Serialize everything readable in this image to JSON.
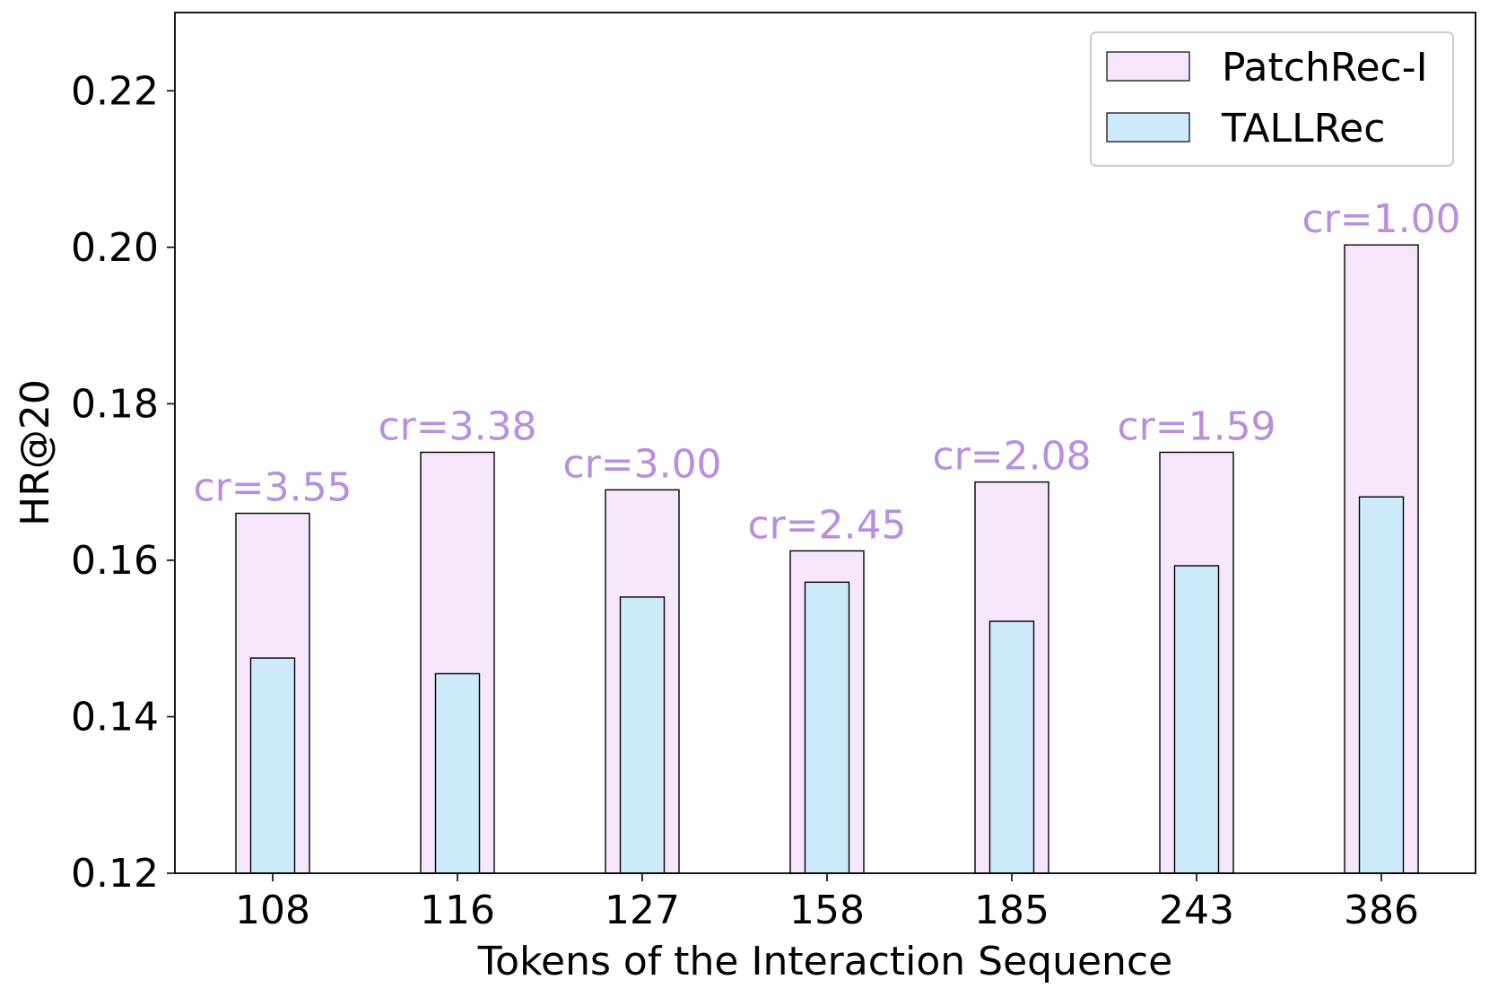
{
  "chart_data": {
    "type": "bar",
    "title": "",
    "xlabel": "Tokens of the Interaction Sequence",
    "ylabel": "HR@20",
    "categories": [
      "108",
      "116",
      "127",
      "158",
      "185",
      "243",
      "386"
    ],
    "series": [
      {
        "name": "PatchRec-I",
        "values": [
          0.166,
          0.1738,
          0.169,
          0.1612,
          0.17,
          0.1738,
          0.2003
        ],
        "color": "#f5e6fc"
      },
      {
        "name": "TALLRec",
        "values": [
          0.1475,
          0.1455,
          0.1553,
          0.1572,
          0.1522,
          0.1593,
          0.1681
        ],
        "color": "#cdeafb"
      }
    ],
    "annotations": [
      "cr=3.55",
      "cr=3.38",
      "cr=3.00",
      "cr=2.45",
      "cr=2.08",
      "cr=1.59",
      "cr=1.00"
    ],
    "annotation_color": "#b98ee0",
    "ylim": [
      0.12,
      0.23
    ],
    "yticks": [
      "0.12",
      "0.14",
      "0.16",
      "0.18",
      "0.20",
      "0.22"
    ],
    "grid": false,
    "legend_position": "top-right"
  }
}
